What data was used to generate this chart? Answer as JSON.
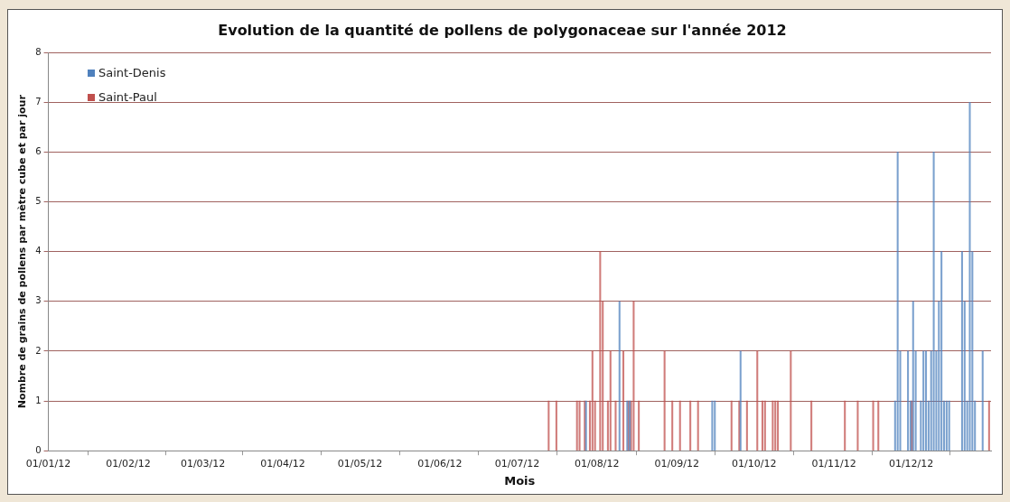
{
  "chart_data": {
    "type": "bar",
    "title": "Evolution de la quantité de pollens de polygonaceae sur l'année 2012",
    "xlabel": "Mois",
    "ylabel": "Nombre de grains de pollens par mètre cube et par jour",
    "series": [
      {
        "name": "Saint-Denis",
        "color": "#4f81bd",
        "x": [
          "2012-07-28",
          "2012-08-10",
          "2012-08-13",
          "2012-08-14",
          "2012-09-15",
          "2012-09-16",
          "2012-09-26",
          "2012-11-25",
          "2012-11-26",
          "2012-11-27",
          "2012-11-30",
          "2012-12-01",
          "2012-12-02",
          "2012-12-03",
          "2012-12-05",
          "2012-12-06",
          "2012-12-07",
          "2012-12-08",
          "2012-12-09",
          "2012-12-10",
          "2012-12-11",
          "2012-12-12",
          "2012-12-13",
          "2012-12-14",
          "2012-12-15",
          "2012-12-16",
          "2012-12-21",
          "2012-12-22",
          "2012-12-23",
          "2012-12-24",
          "2012-12-25",
          "2012-12-26",
          "2012-12-29"
        ],
        "values": [
          1,
          3,
          1,
          1,
          1,
          1,
          2,
          1,
          6,
          2,
          2,
          1,
          3,
          2,
          1,
          2,
          2,
          1,
          2,
          6,
          2,
          3,
          4,
          1,
          1,
          1,
          4,
          3,
          1,
          7,
          4,
          1,
          2
        ]
      },
      {
        "name": "Saint-Paul",
        "color": "#c0504d",
        "x": [
          "2012-07-13",
          "2012-07-16",
          "2012-07-24",
          "2012-07-25",
          "2012-07-27",
          "2012-07-29",
          "2012-07-30",
          "2012-07-31",
          "2012-08-02",
          "2012-08-03",
          "2012-08-05",
          "2012-08-06",
          "2012-08-08",
          "2012-08-11",
          "2012-08-13",
          "2012-08-14",
          "2012-08-15",
          "2012-08-17",
          "2012-08-27",
          "2012-08-30",
          "2012-09-02",
          "2012-09-06",
          "2012-09-09",
          "2012-09-22",
          "2012-09-25",
          "2012-09-28",
          "2012-10-02",
          "2012-10-04",
          "2012-10-05",
          "2012-10-08",
          "2012-10-09",
          "2012-10-10",
          "2012-10-15",
          "2012-10-23",
          "2012-11-05",
          "2012-11-10",
          "2012-11-16",
          "2012-11-18",
          "2012-12-01",
          "2012-12-31"
        ],
        "values": [
          1,
          1,
          1,
          1,
          1,
          1,
          2,
          1,
          4,
          3,
          1,
          2,
          1,
          2,
          1,
          1,
          3,
          1,
          2,
          1,
          1,
          1,
          1,
          1,
          1,
          1,
          2,
          1,
          1,
          1,
          1,
          1,
          2,
          1,
          1,
          1,
          1,
          1,
          1,
          1
        ]
      }
    ],
    "xlim": [
      "2012-01-01",
      "2013-01-01"
    ],
    "xticks": [
      {
        "value": "2012-01-01",
        "label": "01/01/12"
      },
      {
        "value": "2012-02-01",
        "label": "01/02/12"
      },
      {
        "value": "2012-03-01",
        "label": "01/03/12"
      },
      {
        "value": "2012-04-01",
        "label": "01/04/12"
      },
      {
        "value": "2012-05-01",
        "label": "01/05/12"
      },
      {
        "value": "2012-06-01",
        "label": "01/06/12"
      },
      {
        "value": "2012-07-01",
        "label": "01/07/12"
      },
      {
        "value": "2012-08-01",
        "label": "01/08/12"
      },
      {
        "value": "2012-09-01",
        "label": "01/09/12"
      },
      {
        "value": "2012-10-01",
        "label": "01/10/12"
      },
      {
        "value": "2012-11-01",
        "label": "01/11/12"
      },
      {
        "value": "2012-12-01",
        "label": "01/12/12"
      }
    ],
    "ylim": [
      0,
      8
    ],
    "yticks": [
      0,
      1,
      2,
      3,
      4,
      5,
      6,
      7,
      8
    ],
    "grid": "y",
    "legend": "top left"
  }
}
